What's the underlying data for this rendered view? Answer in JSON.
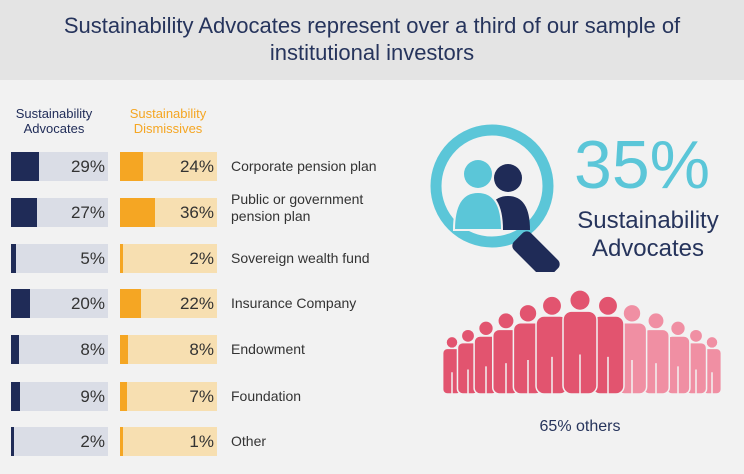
{
  "title": "Sustainability Advocates represent over a third of our sample of institutional investors",
  "headline": {
    "percent": "35%",
    "label": "Sustainability Advocates",
    "others": "65% others"
  },
  "colors": {
    "advocates": "#1f2b57",
    "advocates_track": "#dadde6",
    "dismissives": "#f5a623",
    "dismissives_track": "#f7dfb1",
    "accent": "#5bc6d8",
    "people_dark": "#e2546f",
    "people_light": "#f08fa3"
  },
  "icons": [
    "magnifier-people-icon",
    "crowd-icon"
  ],
  "chart_data": {
    "type": "bar",
    "categories": [
      "Corporate pension plan",
      "Public or government pension plan",
      "Sovereign wealth fund",
      "Insurance Company",
      "Endowment",
      "Foundation",
      "Other"
    ],
    "series": [
      {
        "name": "Sustainability Advocates",
        "values": [
          29,
          27,
          5,
          20,
          8,
          9,
          2
        ],
        "labels": [
          "29%",
          "27%",
          "5%",
          "20%",
          "8%",
          "9%",
          "2%"
        ]
      },
      {
        "name": "Sustainability Dismissives",
        "values": [
          24,
          36,
          2,
          22,
          8,
          7,
          1
        ],
        "labels": [
          "24%",
          "36%",
          "2%",
          "22%",
          "8%",
          "7%",
          "1%"
        ]
      }
    ],
    "category_labels": [
      [
        "Corporate pension plan"
      ],
      [
        "Public or government",
        "pension plan"
      ],
      [
        "Sovereign wealth fund"
      ],
      [
        "Insurance Company"
      ],
      [
        "Endowment"
      ],
      [
        "Foundation"
      ],
      [
        "Other"
      ]
    ],
    "column_headers": [
      [
        "Sustainability",
        "Advocates"
      ],
      [
        "Sustainability",
        "Dismissives"
      ]
    ],
    "xlim": [
      0,
      100
    ]
  }
}
